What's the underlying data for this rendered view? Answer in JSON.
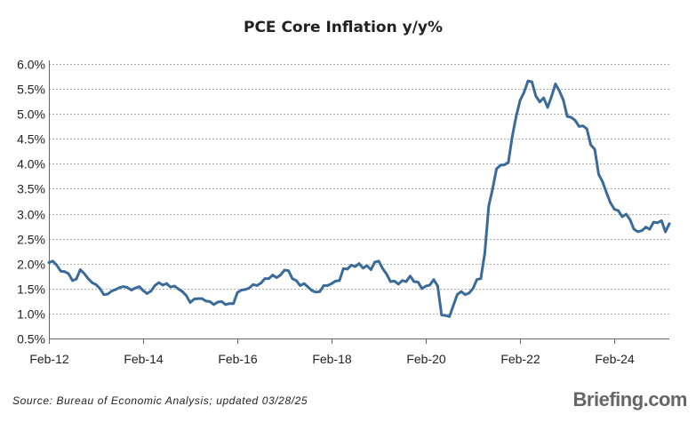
{
  "chart_data": {
    "type": "line",
    "title": "PCE Core Inflation y/y%",
    "xlabel": "",
    "ylabel": "",
    "ylim": [
      0.5,
      6.0
    ],
    "ytick_step": 0.5,
    "grid": "horizontal",
    "yticks": [
      "0.5%",
      "1.0%",
      "1.5%",
      "2.0%",
      "2.5%",
      "3.0%",
      "3.5%",
      "4.0%",
      "4.5%",
      "5.0%",
      "5.5%",
      "6.0%"
    ],
    "xticks": [
      {
        "label": "Feb-12",
        "x": "2012-02"
      },
      {
        "label": "Feb-14",
        "x": "2014-02"
      },
      {
        "label": "Feb-16",
        "x": "2016-02"
      },
      {
        "label": "Feb-18",
        "x": "2018-02"
      },
      {
        "label": "Feb-20",
        "x": "2020-02"
      },
      {
        "label": "Feb-22",
        "x": "2022-02"
      },
      {
        "label": "Feb-24",
        "x": "2024-02"
      }
    ],
    "xlim": [
      "2012-02",
      "2025-04"
    ],
    "series": [
      {
        "name": "",
        "color": "#3a6b99",
        "points": [
          [
            "2012-02",
            2.02
          ],
          [
            "2012-03",
            2.05
          ],
          [
            "2012-04",
            1.97
          ],
          [
            "2012-05",
            1.85
          ],
          [
            "2012-06",
            1.84
          ],
          [
            "2012-07",
            1.8
          ],
          [
            "2012-08",
            1.66
          ],
          [
            "2012-09",
            1.69
          ],
          [
            "2012-10",
            1.88
          ],
          [
            "2012-11",
            1.8
          ],
          [
            "2012-12",
            1.7
          ],
          [
            "2013-01",
            1.62
          ],
          [
            "2013-02",
            1.58
          ],
          [
            "2013-03",
            1.5
          ],
          [
            "2013-04",
            1.38
          ],
          [
            "2013-05",
            1.39
          ],
          [
            "2013-06",
            1.45
          ],
          [
            "2013-07",
            1.48
          ],
          [
            "2013-08",
            1.52
          ],
          [
            "2013-09",
            1.54
          ],
          [
            "2013-10",
            1.52
          ],
          [
            "2013-11",
            1.47
          ],
          [
            "2013-12",
            1.51
          ],
          [
            "2014-01",
            1.54
          ],
          [
            "2014-02",
            1.46
          ],
          [
            "2014-03",
            1.4
          ],
          [
            "2014-04",
            1.45
          ],
          [
            "2014-05",
            1.56
          ],
          [
            "2014-06",
            1.62
          ],
          [
            "2014-07",
            1.57
          ],
          [
            "2014-08",
            1.6
          ],
          [
            "2014-09",
            1.53
          ],
          [
            "2014-10",
            1.55
          ],
          [
            "2014-11",
            1.49
          ],
          [
            "2014-12",
            1.44
          ],
          [
            "2015-01",
            1.36
          ],
          [
            "2015-02",
            1.22
          ],
          [
            "2015-03",
            1.29
          ],
          [
            "2015-04",
            1.3
          ],
          [
            "2015-05",
            1.3
          ],
          [
            "2015-06",
            1.25
          ],
          [
            "2015-07",
            1.24
          ],
          [
            "2015-08",
            1.18
          ],
          [
            "2015-09",
            1.23
          ],
          [
            "2015-10",
            1.24
          ],
          [
            "2015-11",
            1.18
          ],
          [
            "2015-12",
            1.2
          ],
          [
            "2016-01",
            1.2
          ],
          [
            "2016-02",
            1.42
          ],
          [
            "2016-03",
            1.47
          ],
          [
            "2016-04",
            1.48
          ],
          [
            "2016-05",
            1.51
          ],
          [
            "2016-06",
            1.58
          ],
          [
            "2016-07",
            1.56
          ],
          [
            "2016-08",
            1.61
          ],
          [
            "2016-09",
            1.7
          ],
          [
            "2016-10",
            1.7
          ],
          [
            "2016-11",
            1.77
          ],
          [
            "2016-12",
            1.72
          ],
          [
            "2017-01",
            1.77
          ],
          [
            "2017-02",
            1.87
          ],
          [
            "2017-03",
            1.86
          ],
          [
            "2017-04",
            1.7
          ],
          [
            "2017-05",
            1.66
          ],
          [
            "2017-06",
            1.56
          ],
          [
            "2017-07",
            1.6
          ],
          [
            "2017-08",
            1.53
          ],
          [
            "2017-09",
            1.46
          ],
          [
            "2017-10",
            1.43
          ],
          [
            "2017-11",
            1.44
          ],
          [
            "2017-12",
            1.56
          ],
          [
            "2018-01",
            1.56
          ],
          [
            "2018-02",
            1.6
          ],
          [
            "2018-03",
            1.65
          ],
          [
            "2018-04",
            1.66
          ],
          [
            "2018-05",
            1.9
          ],
          [
            "2018-06",
            1.89
          ],
          [
            "2018-07",
            1.97
          ],
          [
            "2018-08",
            1.94
          ],
          [
            "2018-09",
            2.0
          ],
          [
            "2018-10",
            1.91
          ],
          [
            "2018-11",
            1.96
          ],
          [
            "2018-12",
            1.88
          ],
          [
            "2019-01",
            2.03
          ],
          [
            "2019-02",
            2.05
          ],
          [
            "2019-03",
            1.9
          ],
          [
            "2019-04",
            1.79
          ],
          [
            "2019-05",
            1.64
          ],
          [
            "2019-06",
            1.65
          ],
          [
            "2019-07",
            1.59
          ],
          [
            "2019-08",
            1.66
          ],
          [
            "2019-09",
            1.64
          ],
          [
            "2019-10",
            1.75
          ],
          [
            "2019-11",
            1.64
          ],
          [
            "2019-12",
            1.63
          ],
          [
            "2020-01",
            1.5
          ],
          [
            "2020-02",
            1.55
          ],
          [
            "2020-03",
            1.57
          ],
          [
            "2020-04",
            1.68
          ],
          [
            "2020-05",
            1.55
          ],
          [
            "2020-06",
            0.97
          ],
          [
            "2020-07",
            0.96
          ],
          [
            "2020-08",
            0.94
          ],
          [
            "2020-09",
            1.16
          ],
          [
            "2020-10",
            1.38
          ],
          [
            "2020-11",
            1.44
          ],
          [
            "2020-12",
            1.38
          ],
          [
            "2021-01",
            1.41
          ],
          [
            "2021-02",
            1.5
          ],
          [
            "2021-03",
            1.68
          ],
          [
            "2021-04",
            1.7
          ],
          [
            "2021-05",
            2.21
          ],
          [
            "2021-06",
            3.15
          ],
          [
            "2021-07",
            3.5
          ],
          [
            "2021-08",
            3.9
          ],
          [
            "2021-09",
            3.97
          ],
          [
            "2021-10",
            3.98
          ],
          [
            "2021-11",
            4.03
          ],
          [
            "2021-12",
            4.55
          ],
          [
            "2022-01",
            4.95
          ],
          [
            "2022-02",
            5.27
          ],
          [
            "2022-03",
            5.43
          ],
          [
            "2022-04",
            5.66
          ],
          [
            "2022-05",
            5.64
          ],
          [
            "2022-06",
            5.36
          ],
          [
            "2022-07",
            5.24
          ],
          [
            "2022-08",
            5.32
          ],
          [
            "2022-09",
            5.13
          ],
          [
            "2022-10",
            5.35
          ],
          [
            "2022-11",
            5.6
          ],
          [
            "2022-12",
            5.46
          ],
          [
            "2023-01",
            5.28
          ],
          [
            "2023-02",
            4.95
          ],
          [
            "2023-03",
            4.93
          ],
          [
            "2023-04",
            4.87
          ],
          [
            "2023-05",
            4.75
          ],
          [
            "2023-06",
            4.76
          ],
          [
            "2023-07",
            4.7
          ],
          [
            "2023-08",
            4.38
          ],
          [
            "2023-09",
            4.29
          ],
          [
            "2023-10",
            3.79
          ],
          [
            "2023-11",
            3.64
          ],
          [
            "2023-12",
            3.42
          ],
          [
            "2024-01",
            3.22
          ],
          [
            "2024-02",
            3.09
          ],
          [
            "2024-03",
            3.06
          ],
          [
            "2024-04",
            2.94
          ],
          [
            "2024-05",
            2.99
          ],
          [
            "2024-06",
            2.88
          ],
          [
            "2024-07",
            2.69
          ],
          [
            "2024-08",
            2.64
          ],
          [
            "2024-09",
            2.66
          ],
          [
            "2024-10",
            2.73
          ],
          [
            "2024-11",
            2.69
          ],
          [
            "2024-12",
            2.83
          ],
          [
            "2025-01",
            2.82
          ],
          [
            "2025-02",
            2.86
          ],
          [
            "2025-03",
            2.64
          ],
          [
            "2025-04",
            2.8
          ]
        ]
      }
    ]
  },
  "footer": {
    "source": "Source:  Bureau  of  Economic  Analysis;  updated  03/28/25",
    "brand": "Briefing.com"
  }
}
